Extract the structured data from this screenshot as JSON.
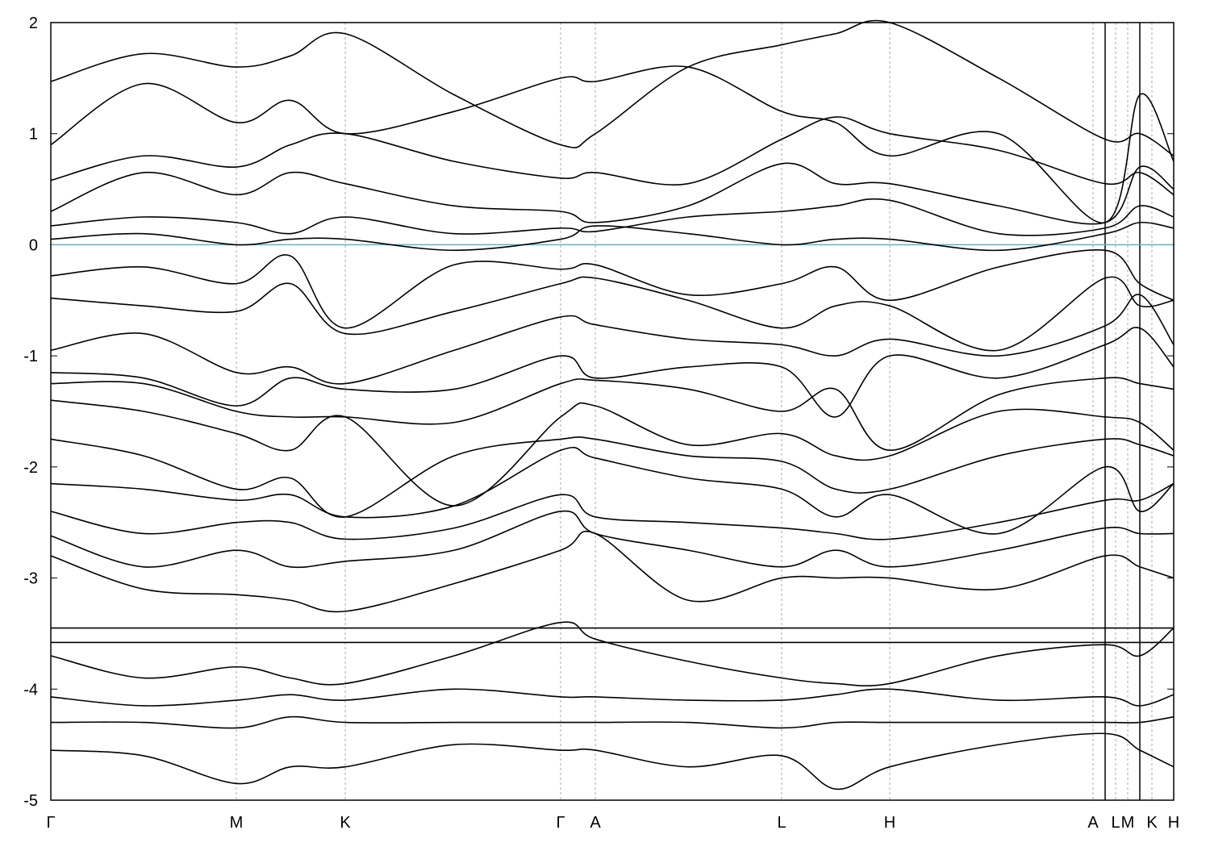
{
  "chart_data": {
    "type": "band-structure",
    "x": [
      0,
      115,
      230,
      297,
      365,
      500,
      632,
      675,
      790,
      906,
      973,
      1040,
      1175,
      1307,
      1350,
      1392
    ],
    "bands": [
      [
        1.47,
        1.72,
        1.6,
        1.7,
        1.9,
        1.35,
        0.9,
        1.0,
        1.6,
        1.8,
        1.9,
        2.0,
        1.5,
        0.95,
        1.0,
        0.8
      ],
      [
        0.9,
        1.45,
        1.1,
        1.3,
        1.0,
        1.2,
        1.5,
        1.47,
        1.6,
        1.2,
        1.1,
        0.8,
        1.0,
        0.2,
        1.35,
        0.75
      ],
      [
        0.58,
        0.8,
        0.7,
        0.9,
        1.0,
        0.75,
        0.6,
        0.65,
        0.55,
        0.95,
        1.15,
        1.0,
        0.85,
        0.55,
        0.65,
        0.45
      ],
      [
        0.3,
        0.65,
        0.45,
        0.65,
        0.55,
        0.35,
        0.3,
        0.2,
        0.35,
        0.73,
        0.55,
        0.55,
        0.35,
        0.2,
        0.7,
        0.5
      ],
      [
        0.17,
        0.25,
        0.2,
        0.1,
        0.25,
        0.1,
        0.15,
        0.12,
        0.25,
        0.3,
        0.35,
        0.4,
        0.1,
        0.15,
        0.35,
        0.25
      ],
      [
        0.05,
        0.1,
        0.0,
        0.05,
        0.05,
        -0.05,
        0.05,
        0.17,
        0.1,
        0.0,
        0.05,
        0.05,
        -0.05,
        0.1,
        0.2,
        0.15
      ],
      [
        -0.28,
        -0.2,
        -0.35,
        -0.1,
        -0.75,
        -0.18,
        -0.22,
        -0.18,
        -0.45,
        -0.35,
        -0.2,
        -0.5,
        -0.2,
        -0.05,
        -0.35,
        -0.5
      ],
      [
        -0.48,
        -0.55,
        -0.6,
        -0.35,
        -0.8,
        -0.6,
        -0.35,
        -0.3,
        -0.5,
        -0.75,
        -0.55,
        -0.55,
        -0.95,
        -0.3,
        -0.55,
        -0.5
      ],
      [
        -0.95,
        -0.8,
        -1.15,
        -1.1,
        -1.25,
        -0.95,
        -0.65,
        -0.72,
        -0.85,
        -0.9,
        -1.0,
        -0.85,
        -1.0,
        -0.73,
        -0.45,
        -0.9
      ],
      [
        -1.15,
        -1.2,
        -1.45,
        -1.2,
        -1.3,
        -1.3,
        -1.0,
        -1.2,
        -1.1,
        -1.1,
        -1.55,
        -1.0,
        -1.2,
        -0.9,
        -0.75,
        -1.1
      ],
      [
        -1.25,
        -1.25,
        -1.5,
        -1.55,
        -1.55,
        -1.6,
        -1.25,
        -1.22,
        -1.3,
        -1.5,
        -1.3,
        -1.85,
        -1.35,
        -1.2,
        -1.25,
        -1.3
      ],
      [
        -1.4,
        -1.5,
        -1.7,
        -1.85,
        -1.55,
        -2.35,
        -1.55,
        -1.45,
        -1.8,
        -1.7,
        -1.9,
        -1.9,
        -1.5,
        -1.55,
        -1.6,
        -1.85
      ],
      [
        -1.75,
        -1.9,
        -2.2,
        -2.1,
        -2.45,
        -1.9,
        -1.75,
        -1.75,
        -1.9,
        -1.95,
        -2.2,
        -2.2,
        -1.9,
        -1.75,
        -1.8,
        -1.9
      ],
      [
        -2.15,
        -2.2,
        -2.3,
        -2.25,
        -2.45,
        -2.35,
        -1.85,
        -1.92,
        -2.1,
        -2.2,
        -2.45,
        -2.25,
        -2.6,
        -2.0,
        -2.4,
        -2.15
      ],
      [
        -2.4,
        -2.6,
        -2.5,
        -2.5,
        -2.65,
        -2.55,
        -2.25,
        -2.45,
        -2.5,
        -2.55,
        -2.6,
        -2.65,
        -2.5,
        -2.3,
        -2.3,
        -2.15
      ],
      [
        -2.62,
        -2.9,
        -2.75,
        -2.9,
        -2.85,
        -2.75,
        -2.4,
        -2.6,
        -2.75,
        -2.9,
        -2.75,
        -2.9,
        -2.75,
        -2.55,
        -2.6,
        -2.6
      ],
      [
        -2.8,
        -3.1,
        -3.15,
        -3.2,
        -3.3,
        -3.05,
        -2.75,
        -2.6,
        -3.2,
        -3.0,
        -3.0,
        -3.0,
        -3.1,
        -2.8,
        -2.9,
        -3.0
      ],
      [
        -3.45,
        -3.45,
        -3.45,
        -3.45,
        -3.45,
        -3.45,
        -3.45,
        -3.45,
        -3.45,
        -3.45,
        -3.45,
        -3.45,
        -3.45,
        -3.45,
        -3.45,
        -3.45
      ],
      [
        -3.58,
        -3.58,
        -3.58,
        -3.58,
        -3.58,
        -3.58,
        -3.58,
        -3.58,
        -3.58,
        -3.58,
        -3.58,
        -3.58,
        -3.58,
        -3.58,
        -3.58,
        -3.58
      ],
      [
        -3.7,
        -3.9,
        -3.8,
        -3.9,
        -3.95,
        -3.7,
        -3.4,
        -3.55,
        -3.75,
        -3.9,
        -3.95,
        -3.95,
        -3.7,
        -3.6,
        -3.7,
        -3.45
      ],
      [
        -4.07,
        -4.15,
        -4.1,
        -4.05,
        -4.1,
        -4.0,
        -4.07,
        -4.07,
        -4.1,
        -4.1,
        -4.05,
        -4.0,
        -4.1,
        -4.07,
        -4.15,
        -4.05
      ],
      [
        -4.3,
        -4.3,
        -4.35,
        -4.25,
        -4.3,
        -4.3,
        -4.3,
        -4.3,
        -4.3,
        -4.35,
        -4.3,
        -4.3,
        -4.3,
        -4.3,
        -4.3,
        -4.25
      ],
      [
        -4.55,
        -4.6,
        -4.85,
        -4.7,
        -4.7,
        -4.5,
        -4.55,
        -4.55,
        -4.7,
        -4.6,
        -4.9,
        -4.7,
        -4.5,
        -4.4,
        -4.55,
        -4.7
      ]
    ],
    "band_color": "#000000",
    "fermi_level": {
      "value": 0,
      "color": "#5fb3c8"
    },
    "xlim": [
      0,
      1392
    ],
    "ylim": [
      -5,
      2
    ],
    "yticks": [
      2,
      1,
      0,
      -1,
      -2,
      -3,
      -4,
      -5
    ],
    "xticks": [
      {
        "value": 0,
        "label": "Γ"
      },
      {
        "value": 230,
        "label": "M"
      },
      {
        "value": 365,
        "label": "K"
      },
      {
        "value": 632,
        "label": "Γ"
      },
      {
        "value": 675,
        "label": "A"
      },
      {
        "value": 906,
        "label": "L"
      },
      {
        "value": 1040,
        "label": "H"
      },
      {
        "value": 1292,
        "label": "A"
      },
      {
        "value": 1320,
        "label": "L"
      },
      {
        "value": 1335,
        "label": "M"
      },
      {
        "value": 1365,
        "label": "K"
      },
      {
        "value": 1392,
        "label": "H"
      }
    ],
    "grid": true
  }
}
